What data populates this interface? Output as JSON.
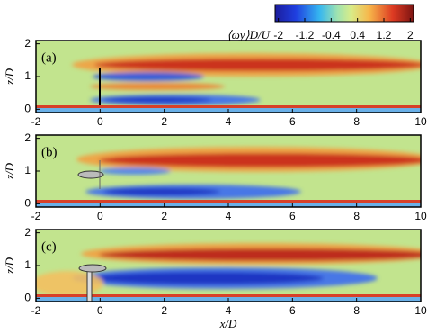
{
  "colorbar": {
    "label": "⟨ωy⟩D/U",
    "lim": [
      -2.1,
      2.1
    ],
    "ticks": [
      -2,
      -1.2,
      -0.4,
      0.4,
      1.2,
      2
    ]
  },
  "chart_data": [
    {
      "type": "contour",
      "panel_label": "(a)",
      "ylabel": "z/D",
      "xlim": [
        -2,
        10
      ],
      "ylim": [
        -0.1,
        2.1
      ],
      "xticks": [
        -2,
        0,
        2,
        4,
        6,
        8,
        10
      ],
      "yticks": [
        0,
        1,
        2
      ]
    },
    {
      "type": "contour",
      "panel_label": "(b)",
      "ylabel": "z/D",
      "xlim": [
        -2,
        10
      ],
      "ylim": [
        -0.1,
        2.1
      ],
      "xticks": [
        -2,
        0,
        2,
        4,
        6,
        8,
        10
      ],
      "yticks": [
        0,
        1,
        2
      ]
    },
    {
      "type": "contour",
      "panel_label": "(c)",
      "ylabel": "z/D",
      "xlabel": "x/D",
      "xlim": [
        -2,
        10
      ],
      "ylim": [
        -0.1,
        2.1
      ],
      "xticks": [
        -2,
        0,
        2,
        4,
        6,
        8,
        10
      ],
      "yticks": [
        0,
        1,
        2
      ]
    }
  ]
}
